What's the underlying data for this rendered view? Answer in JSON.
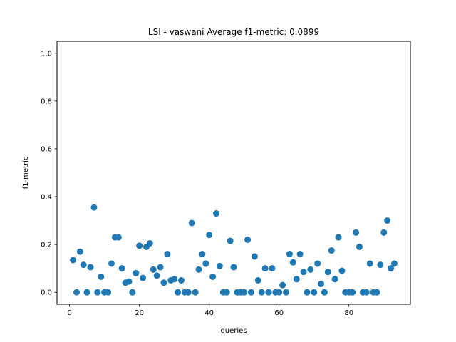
{
  "chart_data": {
    "type": "scatter",
    "title": "LSI - vaswani  Average f1-metric: 0.0899",
    "xlabel": "queries",
    "ylabel": "f1-metric",
    "xlim": [
      -3.6,
      97.6
    ],
    "ylim": [
      -0.05,
      1.05
    ],
    "xticks": [
      0,
      20,
      40,
      60,
      80
    ],
    "yticks": [
      0.0,
      0.2,
      0.4,
      0.6,
      0.8,
      1.0
    ],
    "ytick_labels": [
      "0.0",
      "0.2",
      "0.4",
      "0.6",
      "0.8",
      "1.0"
    ],
    "grid": false,
    "marker_color": "#1f77b4",
    "x": [
      1,
      2,
      3,
      4,
      5,
      6,
      7,
      8,
      9,
      10,
      11,
      12,
      13,
      14,
      15,
      16,
      17,
      18,
      19,
      20,
      21,
      22,
      23,
      24,
      25,
      26,
      27,
      28,
      29,
      30,
      31,
      32,
      33,
      34,
      35,
      36,
      37,
      38,
      39,
      40,
      41,
      42,
      43,
      44,
      45,
      46,
      47,
      48,
      49,
      50,
      51,
      52,
      53,
      54,
      55,
      56,
      57,
      58,
      59,
      60,
      61,
      62,
      63,
      64,
      65,
      66,
      67,
      68,
      69,
      70,
      71,
      72,
      73,
      74,
      75,
      76,
      77,
      78,
      79,
      80,
      81,
      82,
      83,
      84,
      85,
      86,
      87,
      88,
      89,
      90,
      91,
      92,
      93
    ],
    "y": [
      0.135,
      0.0,
      0.17,
      0.115,
      0.0,
      0.105,
      0.355,
      0.0,
      0.065,
      0.0,
      0.0,
      0.12,
      0.23,
      0.23,
      0.1,
      0.04,
      0.045,
      0.0,
      0.08,
      0.195,
      0.06,
      0.19,
      0.205,
      0.095,
      0.07,
      0.105,
      0.04,
      0.16,
      0.05,
      0.055,
      0.0,
      0.05,
      0.0,
      0.0,
      0.29,
      0.0,
      0.095,
      0.16,
      0.12,
      0.24,
      0.065,
      0.33,
      0.11,
      0.0,
      0.0,
      0.215,
      0.105,
      0.0,
      0.0,
      0.0,
      0.22,
      0.0,
      0.15,
      0.05,
      0.0,
      0.1,
      0.0,
      0.1,
      0.0,
      0.0,
      0.03,
      0.0,
      0.16,
      0.125,
      0.055,
      0.16,
      0.085,
      0.0,
      0.095,
      0.0,
      0.12,
      0.035,
      0.0,
      0.085,
      0.175,
      0.055,
      0.23,
      0.09,
      0.0,
      0.0,
      0.0,
      0.25,
      0.19,
      0.0,
      0.0,
      0.12,
      0.0,
      0.0,
      0.115,
      0.25,
      0.3,
      0.1,
      0.12
    ]
  }
}
